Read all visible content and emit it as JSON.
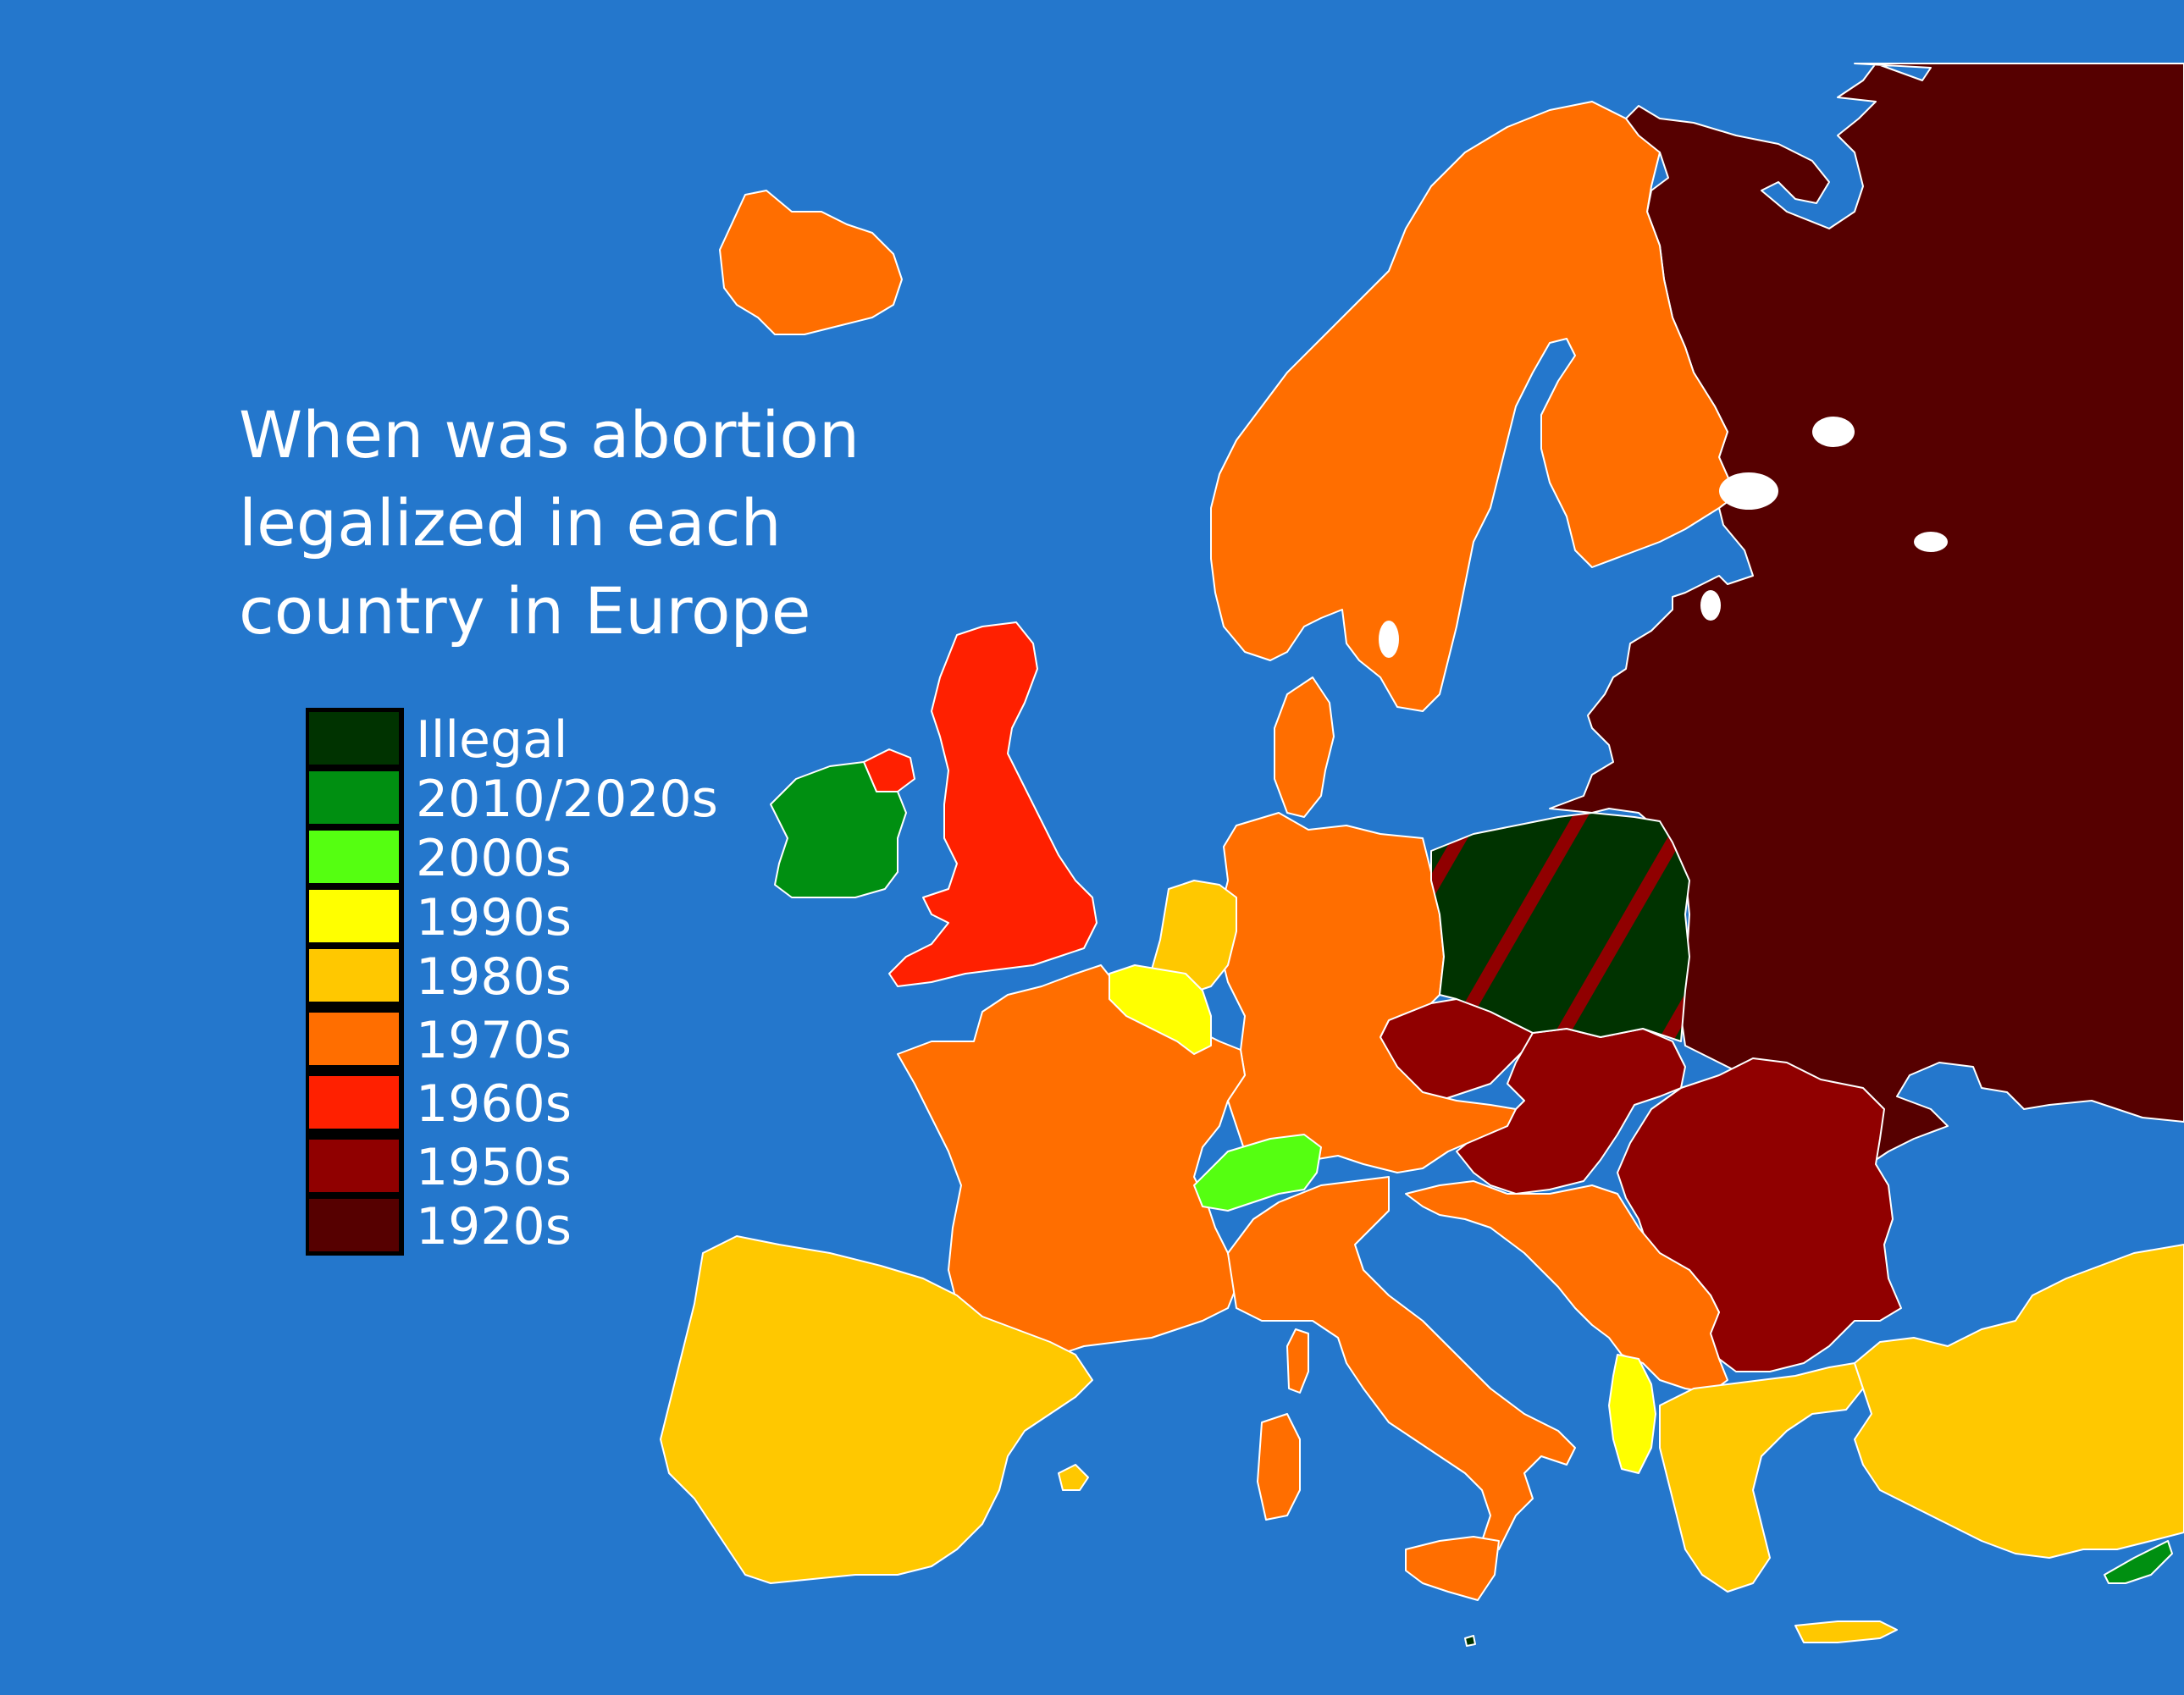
{
  "title": {
    "line1": "When was abortion",
    "line2": "legalized in each",
    "line3": "country in Europe"
  },
  "colors": {
    "sea": "#2477cc",
    "illegal": "#003300",
    "2010_2020s": "#008f11",
    "2000s": "#55ff11",
    "1990s": "#ffff00",
    "1980s": "#ffc800",
    "1970s": "#ff6e00",
    "1960s": "#ff2000",
    "1950s": "#900000",
    "1920s": "#560000",
    "border": "#ffffff",
    "lake": "#ffffff"
  },
  "legend": [
    {
      "label": "Illegal",
      "color": "#003300"
    },
    {
      "label": "2010/2020s",
      "color": "#008f11"
    },
    {
      "label": "2000s",
      "color": "#55ff11"
    },
    {
      "label": "1990s",
      "color": "#ffff00"
    },
    {
      "label": "1980s",
      "color": "#ffc800"
    },
    {
      "label": "1970s",
      "color": "#ff6e00"
    },
    {
      "label": "1960s",
      "color": "#ff2000"
    },
    {
      "label": "1950s",
      "color": "#900000"
    },
    {
      "label": "1920s",
      "color": "#560000"
    }
  ],
  "regions": [
    {
      "name": "russia-belarus-ukraine-baltics",
      "category": "1920s",
      "color": "#560000"
    },
    {
      "name": "central-southeast-europe",
      "category": "1950s",
      "color": "#900000"
    },
    {
      "name": "united-kingdom",
      "category": "1960s",
      "color": "#ff2000"
    },
    {
      "name": "scandinavia-france-germany-italy-balkans",
      "category": "1970s",
      "color": "#ff6e00"
    },
    {
      "name": "iberia-netherlands-greece-turkey",
      "category": "1980s",
      "color": "#ffc800"
    },
    {
      "name": "belgium-albania",
      "category": "1990s",
      "color": "#ffff00"
    },
    {
      "name": "switzerland",
      "category": "2000s",
      "color": "#55ff11"
    },
    {
      "name": "ireland-cyprus",
      "category": "2010/2020s",
      "color": "#008f11"
    },
    {
      "name": "poland-malta",
      "category": "Illegal",
      "color": "#003300",
      "hatch_color": "#900000"
    }
  ]
}
